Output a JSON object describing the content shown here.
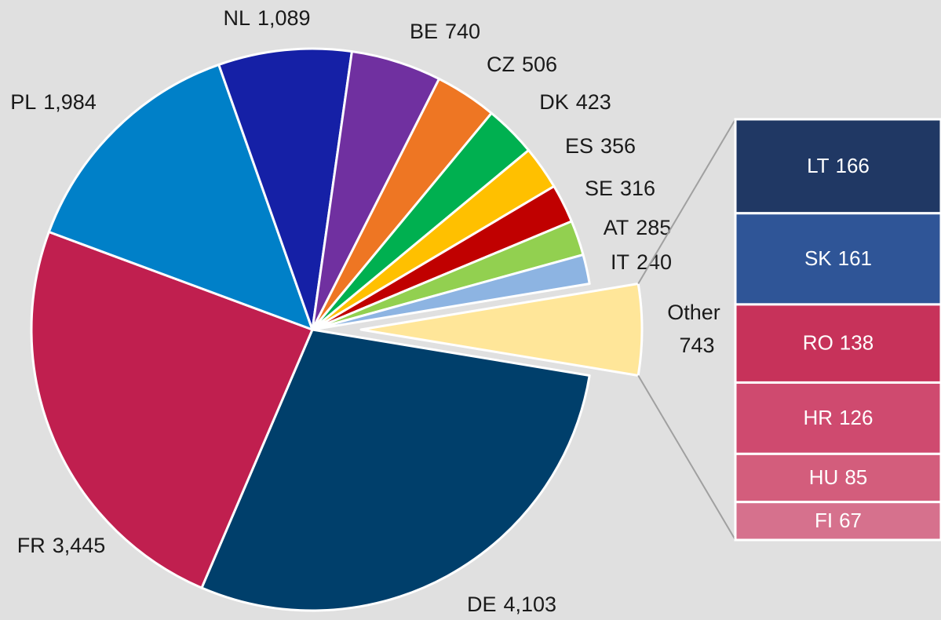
{
  "chart_data": {
    "type": "pie",
    "categories": [
      "DE",
      "FR",
      "PL",
      "NL",
      "BE",
      "CZ",
      "DK",
      "ES",
      "SE",
      "AT",
      "IT",
      "Other"
    ],
    "values": [
      4103,
      3445,
      1984,
      1089,
      740,
      506,
      423,
      356,
      316,
      285,
      240,
      743
    ],
    "value_labels": [
      "4,103",
      "3,445",
      "1,984",
      "1,089",
      "740",
      "506",
      "423",
      "356",
      "316",
      "285",
      "240",
      "743"
    ],
    "colors": [
      "#003f6b",
      "#c01f4f",
      "#0080c8",
      "#1520a6",
      "#7030a0",
      "#ee7623",
      "#00b050",
      "#ffc000",
      "#c00000",
      "#92d050",
      "#8db4e2",
      "#ffe699"
    ],
    "breakdown": {
      "categories": [
        "LT",
        "SK",
        "RO",
        "HR",
        "HU",
        "FI"
      ],
      "values": [
        166,
        161,
        138,
        126,
        85,
        67
      ],
      "colors": [
        "#203864",
        "#2f5597",
        "#c7325a",
        "#cf4a6f",
        "#d35d7c",
        "#d6718d"
      ]
    }
  }
}
